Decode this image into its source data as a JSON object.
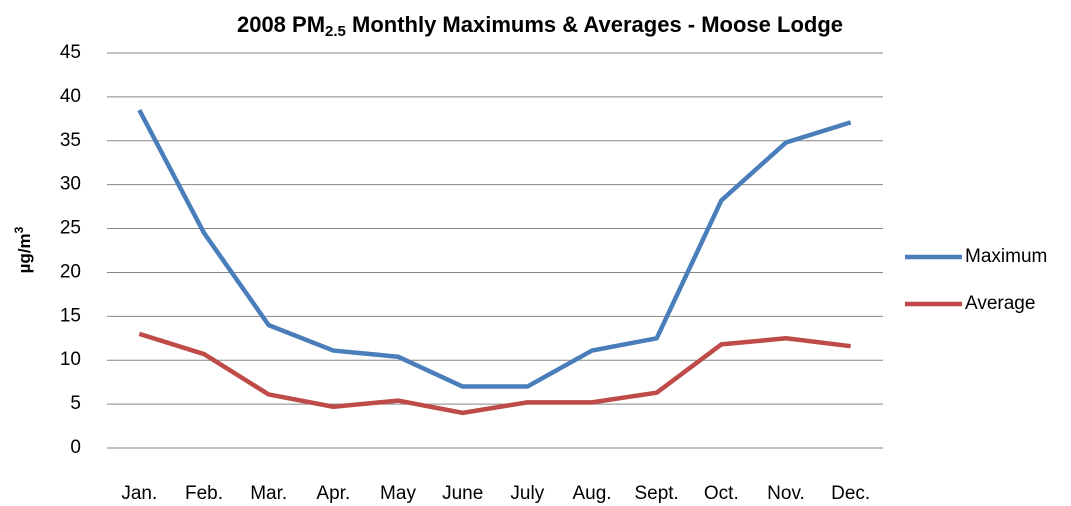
{
  "chart_data": {
    "type": "line",
    "title": [
      "2008 PM",
      "2.5",
      " Monthly Maximums & Averages - Moose Lodge"
    ],
    "y_label": [
      "µg/m",
      "3"
    ],
    "categories": [
      "Jan.",
      "Feb.",
      "Mar.",
      "Apr.",
      "May",
      "June",
      "July",
      "Aug.",
      "Sept.",
      "Oct.",
      "Nov.",
      "Dec."
    ],
    "series": [
      {
        "name": "Maximum",
        "color": "#4a7ebb",
        "values": [
          38.5,
          24.5,
          14,
          11.1,
          10.4,
          7,
          7,
          11.1,
          12.5,
          28.2,
          34.8,
          37.1
        ]
      },
      {
        "name": "Average",
        "color": "#be4b48",
        "values": [
          13,
          10.7,
          6.1,
          4.7,
          5.4,
          4,
          5.2,
          5.2,
          6.3,
          11.8,
          12.5,
          11.6
        ]
      }
    ],
    "ylim": [
      0,
      45
    ],
    "yticks": [
      0,
      5,
      10,
      15,
      20,
      25,
      30,
      35,
      40,
      45
    ],
    "grid": true,
    "legend": "right"
  }
}
